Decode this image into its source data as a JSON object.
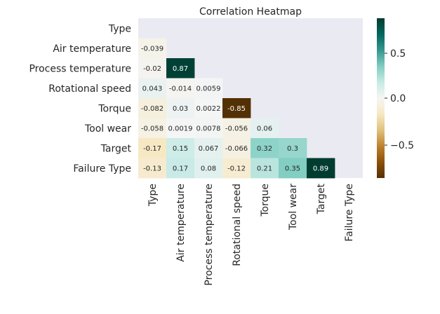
{
  "chart_data": {
    "type": "heatmap",
    "title": "Correlation Heatmap",
    "variables": [
      "Type",
      "Air temperature",
      "Process temperature",
      "Rotational speed",
      "Torque",
      "Tool wear",
      "Target",
      "Failure Type"
    ],
    "mask": "upper-triangle-including-diagonal",
    "cells": [
      {
        "row": "Air temperature",
        "col": "Type",
        "value": -0.039,
        "label": "-0.039"
      },
      {
        "row": "Process temperature",
        "col": "Type",
        "value": -0.02,
        "label": "-0.02"
      },
      {
        "row": "Process temperature",
        "col": "Air temperature",
        "value": 0.87,
        "label": "0.87"
      },
      {
        "row": "Rotational speed",
        "col": "Type",
        "value": 0.043,
        "label": "0.043"
      },
      {
        "row": "Rotational speed",
        "col": "Air temperature",
        "value": -0.014,
        "label": "-0.014"
      },
      {
        "row": "Rotational speed",
        "col": "Process temperature",
        "value": 0.0059,
        "label": "0.0059"
      },
      {
        "row": "Torque",
        "col": "Type",
        "value": -0.082,
        "label": "-0.082"
      },
      {
        "row": "Torque",
        "col": "Air temperature",
        "value": 0.03,
        "label": "0.03"
      },
      {
        "row": "Torque",
        "col": "Process temperature",
        "value": 0.0022,
        "label": "0.0022"
      },
      {
        "row": "Torque",
        "col": "Rotational speed",
        "value": -0.85,
        "label": "-0.85"
      },
      {
        "row": "Tool wear",
        "col": "Type",
        "value": -0.058,
        "label": "-0.058"
      },
      {
        "row": "Tool wear",
        "col": "Air temperature",
        "value": 0.0019,
        "label": "0.0019"
      },
      {
        "row": "Tool wear",
        "col": "Process temperature",
        "value": 0.0078,
        "label": "0.0078"
      },
      {
        "row": "Tool wear",
        "col": "Rotational speed",
        "value": -0.056,
        "label": "-0.056"
      },
      {
        "row": "Tool wear",
        "col": "Torque",
        "value": 0.06,
        "label": "0.06"
      },
      {
        "row": "Target",
        "col": "Type",
        "value": -0.17,
        "label": "-0.17"
      },
      {
        "row": "Target",
        "col": "Air temperature",
        "value": 0.15,
        "label": "0.15"
      },
      {
        "row": "Target",
        "col": "Process temperature",
        "value": 0.067,
        "label": "0.067"
      },
      {
        "row": "Target",
        "col": "Rotational speed",
        "value": -0.066,
        "label": "-0.066"
      },
      {
        "row": "Target",
        "col": "Torque",
        "value": 0.32,
        "label": "0.32"
      },
      {
        "row": "Target",
        "col": "Tool wear",
        "value": 0.3,
        "label": "0.3"
      },
      {
        "row": "Failure Type",
        "col": "Type",
        "value": -0.13,
        "label": "-0.13"
      },
      {
        "row": "Failure Type",
        "col": "Air temperature",
        "value": 0.17,
        "label": "0.17"
      },
      {
        "row": "Failure Type",
        "col": "Process temperature",
        "value": 0.08,
        "label": "0.08"
      },
      {
        "row": "Failure Type",
        "col": "Rotational speed",
        "value": -0.12,
        "label": "-0.12"
      },
      {
        "row": "Failure Type",
        "col": "Torque",
        "value": 0.21,
        "label": "0.21"
      },
      {
        "row": "Failure Type",
        "col": "Tool wear",
        "value": 0.35,
        "label": "0.35"
      },
      {
        "row": "Failure Type",
        "col": "Target",
        "value": 0.89,
        "label": "0.89"
      }
    ],
    "colorbar": {
      "colormap": "BrBG",
      "range": [
        -0.85,
        0.89
      ],
      "ticks": [
        {
          "value": 0.5,
          "label": "0.5"
        },
        {
          "value": 0.0,
          "label": "0.0"
        },
        {
          "value": -0.5,
          "label": "−0.5"
        }
      ]
    },
    "style": {
      "background_color": "#eaeaf2",
      "grid": false
    }
  }
}
